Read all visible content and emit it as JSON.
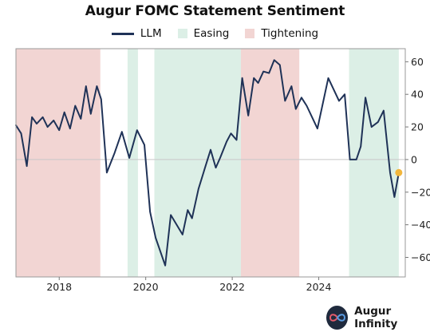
{
  "chart_data": {
    "type": "line",
    "title": "Augur FOMC Statement Sentiment",
    "xlabel": "",
    "ylabel": "",
    "xlim": [
      2017.0,
      2026.0
    ],
    "ylim": [
      -72,
      68
    ],
    "yticks": [
      60,
      40,
      20,
      0,
      -20,
      -40,
      -60
    ],
    "xticks": [
      2018,
      2020,
      2022,
      2024
    ],
    "legend": {
      "placement": "top-center",
      "line_label": "LLM",
      "easing_label": "Easing",
      "tightening_label": "Tightening"
    },
    "grid": false,
    "zero_line": true,
    "colors": {
      "line": "#1f3257",
      "easing": "#dcefe6",
      "tightening": "#f2d5d3",
      "latest_marker": "#f2b63c",
      "zero": "#c8c8c8"
    },
    "regimes": [
      {
        "type": "tightening",
        "start": 2017.0,
        "end": 2018.95
      },
      {
        "type": "easing",
        "start": 2019.58,
        "end": 2019.82
      },
      {
        "type": "easing",
        "start": 2020.2,
        "end": 2022.2
      },
      {
        "type": "tightening",
        "start": 2022.2,
        "end": 2023.55
      },
      {
        "type": "easing",
        "start": 2024.7,
        "end": 2025.85
      }
    ],
    "series": [
      {
        "name": "LLM",
        "x": [
          2017.0,
          2017.12,
          2017.25,
          2017.37,
          2017.48,
          2017.62,
          2017.73,
          2017.87,
          2018.0,
          2018.12,
          2018.25,
          2018.37,
          2018.5,
          2018.62,
          2018.73,
          2018.87,
          2018.97,
          2019.1,
          2019.28,
          2019.45,
          2019.62,
          2019.8,
          2019.97,
          2020.1,
          2020.23,
          2020.45,
          2020.58,
          2020.85,
          2020.97,
          2021.07,
          2021.22,
          2021.37,
          2021.5,
          2021.62,
          2021.72,
          2021.87,
          2021.97,
          2022.1,
          2022.23,
          2022.37,
          2022.5,
          2022.6,
          2022.72,
          2022.85,
          2022.97,
          2023.1,
          2023.22,
          2023.37,
          2023.47,
          2023.6,
          2023.72,
          2023.97,
          2024.22,
          2024.47,
          2024.6,
          2024.72,
          2024.87,
          2024.97,
          2025.08,
          2025.22,
          2025.37,
          2025.5,
          2025.65,
          2025.75,
          2025.85
        ],
        "y": [
          21,
          16,
          -4,
          26,
          22,
          26,
          20,
          24,
          18,
          29,
          19,
          33,
          25,
          45,
          28,
          45,
          37,
          -8,
          4,
          17,
          1,
          18,
          9,
          -32,
          -48,
          -65,
          -34,
          -46,
          -31,
          -36,
          -18,
          -5,
          6,
          -5,
          1,
          11,
          16,
          12,
          50,
          27,
          50,
          47,
          54,
          53,
          61,
          58,
          36,
          45,
          31,
          38,
          33,
          19,
          50,
          36,
          40,
          0,
          0,
          8,
          38,
          20,
          23,
          30,
          -8,
          -23,
          -8
        ]
      }
    ],
    "latest_point": {
      "x": 2025.85,
      "y": -8
    }
  },
  "brand": {
    "name": "Augur Infinity",
    "icon": "infinity-icon"
  }
}
